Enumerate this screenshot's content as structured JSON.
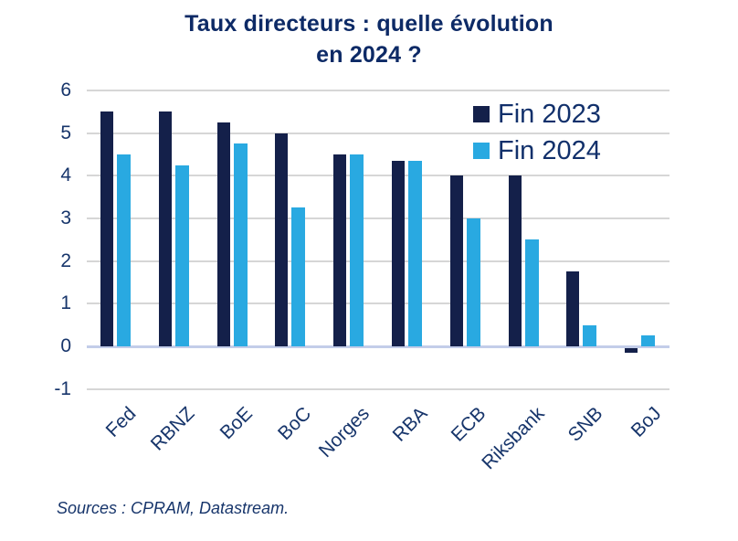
{
  "title": {
    "line1": "Taux directeurs : quelle évolution",
    "line2": "en 2024 ?"
  },
  "source": "Sources : CPRAM, Datastream.",
  "legend": [
    {
      "label": "Fin 2023",
      "color": "#14204a"
    },
    {
      "label": "Fin 2024",
      "color": "#29a9e1"
    }
  ],
  "colors": {
    "dark_bar": "#14204a",
    "light_bar": "#29a9e1",
    "title_text": "#0d2a66",
    "axis_text": "#17356b",
    "gridline": "#d6d6d6",
    "zero_line": "#c3cde9",
    "background": "#ffffff"
  },
  "chart_data": {
    "type": "bar",
    "title": "Taux directeurs : quelle évolution en 2024 ?",
    "categories": [
      "Fed",
      "RBNZ",
      "BoE",
      "BoC",
      "Norges",
      "RBA",
      "ECB",
      "Riksbank",
      "SNB",
      "BoJ"
    ],
    "series": [
      {
        "name": "Fin 2023",
        "color": "#14204a",
        "values": [
          5.5,
          5.5,
          5.25,
          5.0,
          4.5,
          4.35,
          4.0,
          4.0,
          1.75,
          -0.1
        ]
      },
      {
        "name": "Fin 2024",
        "color": "#29a9e1",
        "values": [
          4.5,
          4.25,
          4.75,
          3.25,
          4.5,
          4.35,
          3.0,
          2.5,
          0.5,
          0.25
        ]
      }
    ],
    "xlabel": "",
    "ylabel": "",
    "y_ticks": [
      6,
      5,
      4,
      3,
      2,
      1,
      0,
      -1
    ],
    "ylim": [
      -1,
      6
    ],
    "grid": true,
    "legend_position": "top-right",
    "source": "Sources : CPRAM, Datastream."
  }
}
